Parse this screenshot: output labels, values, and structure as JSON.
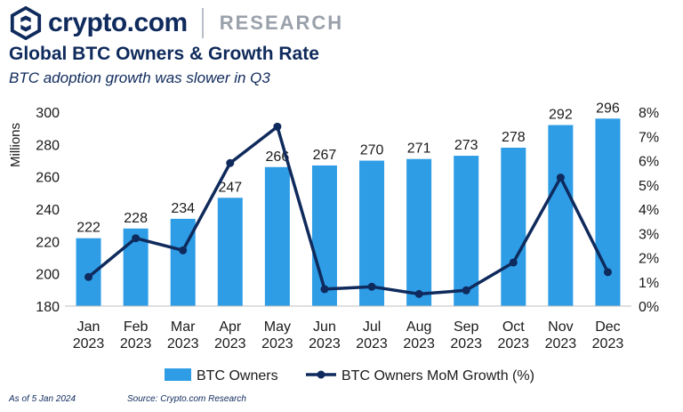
{
  "brand": {
    "name": "crypto.com",
    "section": "RESEARCH",
    "colors": {
      "navy": "#0f2a5c",
      "gray": "#9aa1ab"
    }
  },
  "title": "Global BTC Owners & Growth Rate",
  "subtitle": "BTC adoption growth was slower in Q3",
  "footer": {
    "as_of": "As of 5 Jan 2024",
    "source": "Source: Crypto.com Research"
  },
  "chart_data": {
    "type": "bar",
    "categories": [
      "Jan 2023",
      "Feb 2023",
      "Mar 2023",
      "Apr 2023",
      "May 2023",
      "Jun 2023",
      "Jul 2023",
      "Aug 2023",
      "Sep 2023",
      "Oct 2023",
      "Nov 2023",
      "Dec 2023"
    ],
    "series": [
      {
        "name": "BTC Owners",
        "type": "bar",
        "axis": "left",
        "color": "#2e9de6",
        "values": [
          222,
          228,
          234,
          247,
          266,
          267,
          270,
          271,
          273,
          278,
          292,
          296
        ]
      },
      {
        "name": "BTC Owners MoM Growth (%)",
        "type": "line",
        "axis": "right",
        "color": "#0f2a5c",
        "values": [
          1.2,
          2.8,
          2.3,
          5.9,
          7.4,
          0.7,
          0.8,
          0.5,
          0.65,
          1.8,
          5.3,
          1.4
        ]
      }
    ],
    "ylabel": "Millions",
    "ylim": [
      180,
      300
    ],
    "y_ticks": [
      "180",
      "200",
      "220",
      "240",
      "260",
      "280",
      "300"
    ],
    "y2lim": [
      0,
      8
    ],
    "y2_ticks": [
      "0%",
      "1%",
      "2%",
      "3%",
      "4%",
      "5%",
      "6%",
      "7%",
      "8%"
    ],
    "grid": false,
    "legend": "bottom"
  }
}
